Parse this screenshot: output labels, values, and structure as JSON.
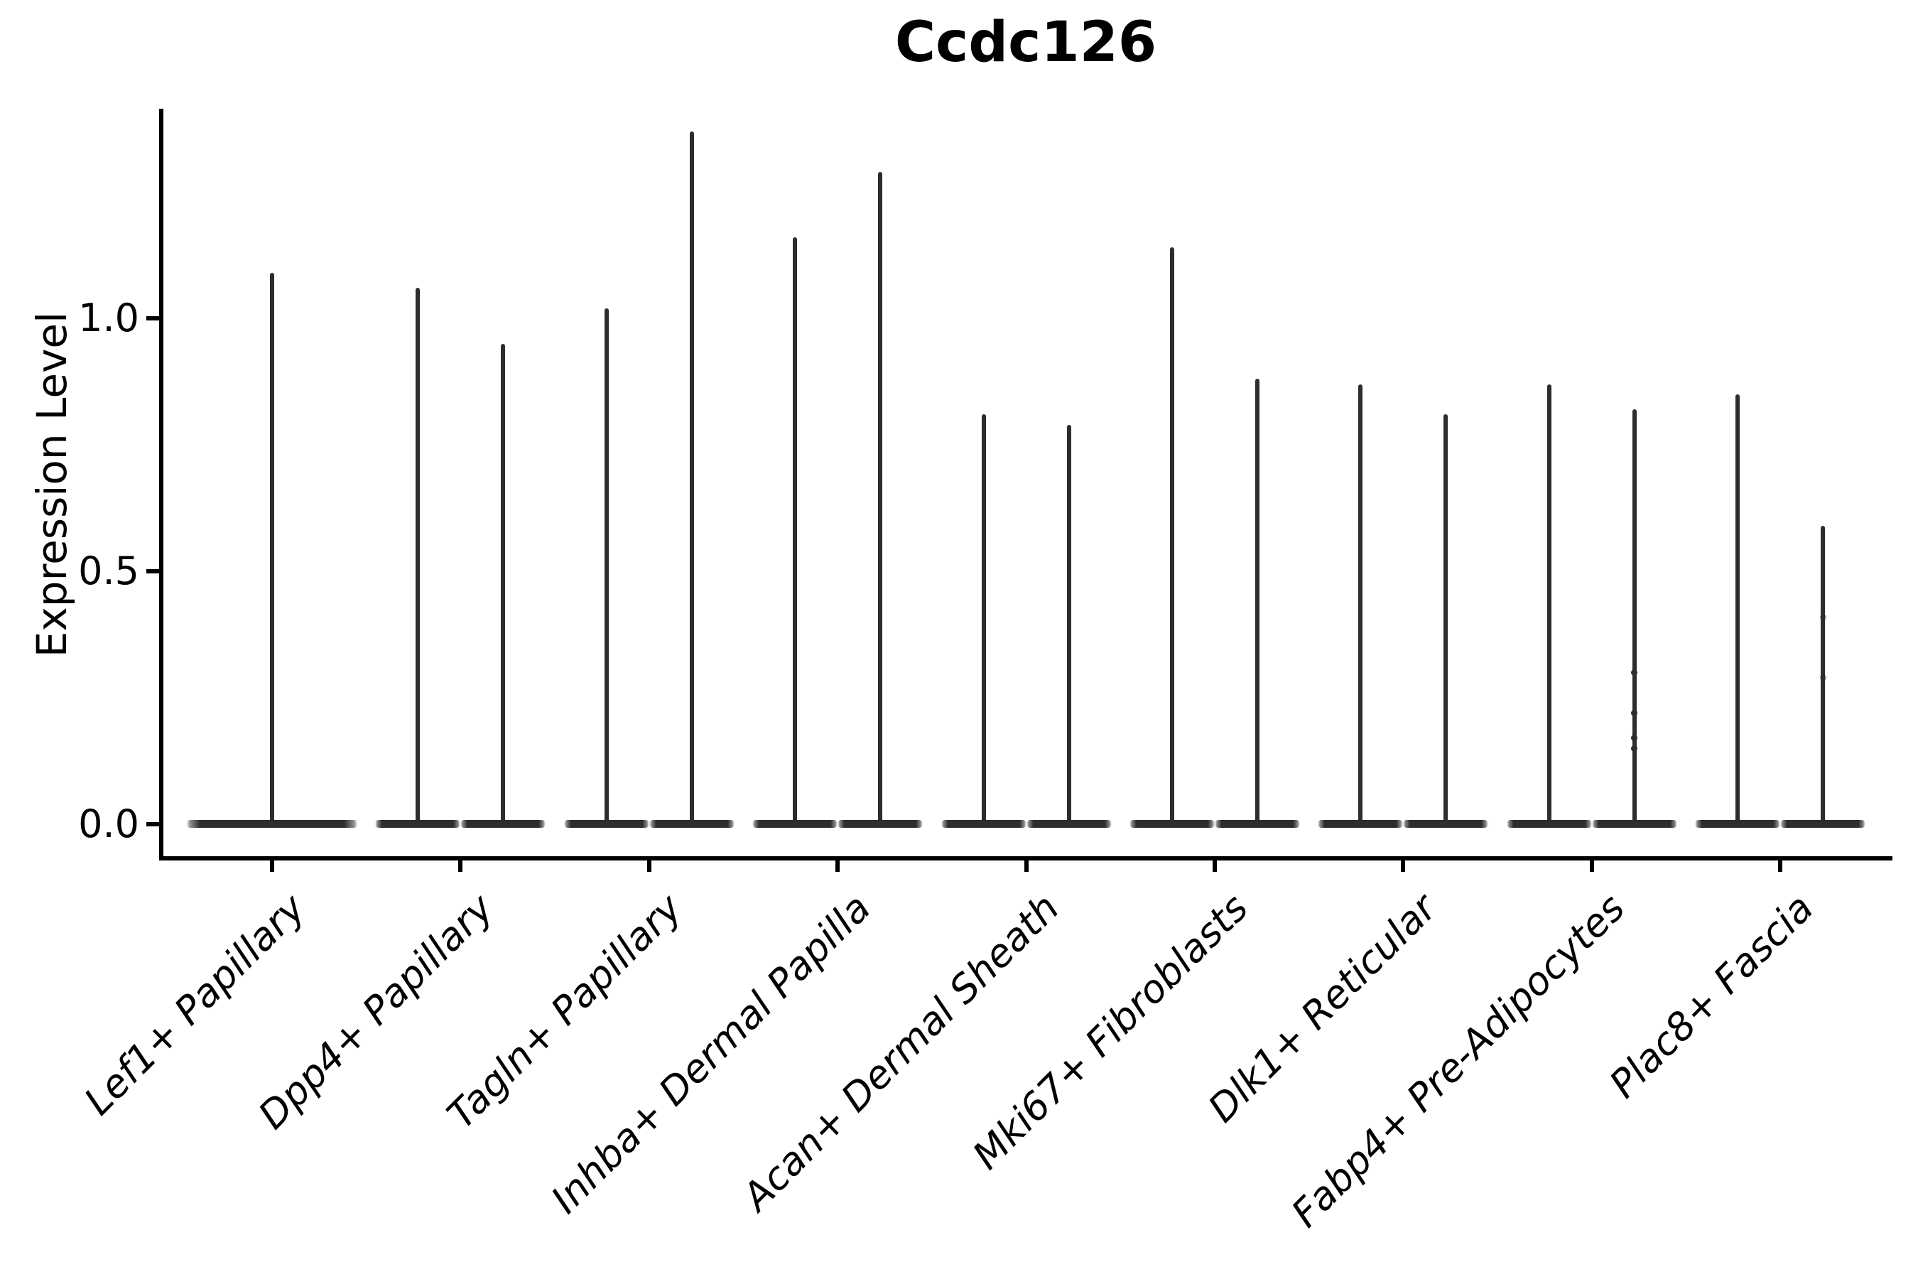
{
  "chart_data": {
    "type": "violin",
    "title": "Ccdc126",
    "xlabel": "",
    "ylabel": "Expression Level",
    "ylim": [
      -0.07,
      1.41
    ],
    "yticks": [
      0.0,
      0.5,
      1.0
    ],
    "ytick_labels": [
      "0.0",
      "0.5",
      "1.0"
    ],
    "grid": false,
    "legend": false,
    "categories": [
      "Lef1+ Papillary",
      "Dpp4+ Papillary",
      "Tagln+ Papillary",
      "Inhba+ Dermal Papilla",
      "Acan+ Dermal Sheath",
      "Mki67+ Fibroblasts",
      "Dlk1+ Reticular",
      "Fabp4+ Pre-Adipocytes",
      "Plac8+ Fascia"
    ],
    "violins": [
      {
        "category_index": 0,
        "slot": "center",
        "max_expression": 1.09,
        "points": []
      },
      {
        "category_index": 1,
        "slot": "left",
        "max_expression": 1.06,
        "points": []
      },
      {
        "category_index": 1,
        "slot": "right",
        "max_expression": 0.95,
        "points": []
      },
      {
        "category_index": 2,
        "slot": "left",
        "max_expression": 1.02,
        "points": []
      },
      {
        "category_index": 2,
        "slot": "right",
        "max_expression": 1.37,
        "points": []
      },
      {
        "category_index": 3,
        "slot": "left",
        "max_expression": 1.16,
        "points": []
      },
      {
        "category_index": 3,
        "slot": "right",
        "max_expression": 1.29,
        "points": []
      },
      {
        "category_index": 4,
        "slot": "left",
        "max_expression": 0.81,
        "points": []
      },
      {
        "category_index": 4,
        "slot": "right",
        "max_expression": 0.79,
        "points": []
      },
      {
        "category_index": 5,
        "slot": "left",
        "max_expression": 1.14,
        "points": []
      },
      {
        "category_index": 5,
        "slot": "right",
        "max_expression": 0.88,
        "points": []
      },
      {
        "category_index": 6,
        "slot": "left",
        "max_expression": 0.87,
        "points": []
      },
      {
        "category_index": 6,
        "slot": "right",
        "max_expression": 0.81,
        "points": []
      },
      {
        "category_index": 7,
        "slot": "left",
        "max_expression": 0.87,
        "points": []
      },
      {
        "category_index": 7,
        "slot": "right",
        "max_expression": 0.82,
        "points": [
          0.3,
          0.22,
          0.17,
          0.15
        ]
      },
      {
        "category_index": 8,
        "slot": "left",
        "max_expression": 0.85,
        "points": []
      },
      {
        "category_index": 8,
        "slot": "right",
        "max_expression": 0.59,
        "points": [
          0.41,
          0.29
        ],
        "points_alpha": 0.5
      }
    ],
    "colors": {
      "violin": "#2d2d2d",
      "axis": "#000000",
      "text": "#000000",
      "background": "#ffffff"
    }
  }
}
